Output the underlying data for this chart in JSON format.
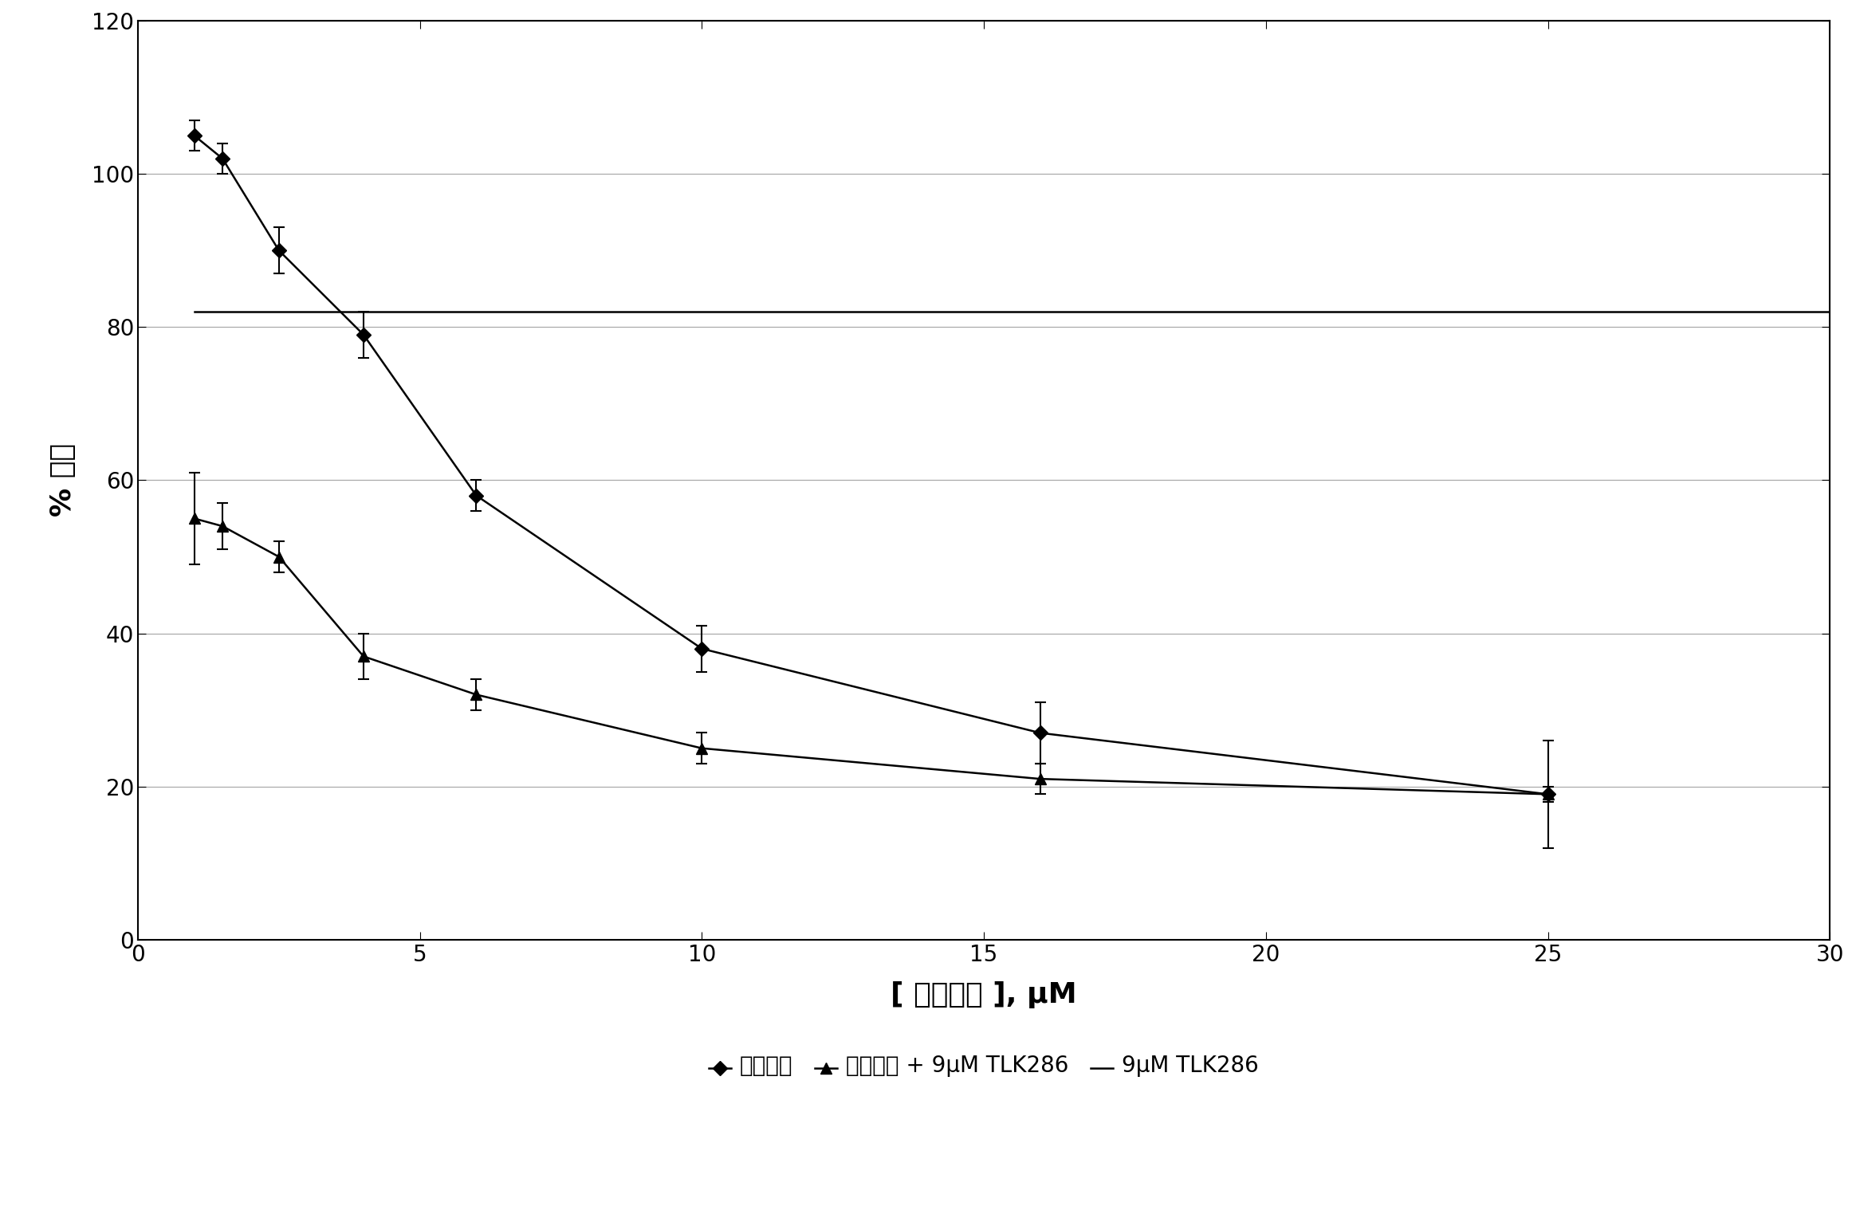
{
  "title": "",
  "xlabel": "[ 奥沙利铂 ], μM",
  "ylabel": "% 生长",
  "xlim": [
    0,
    30
  ],
  "ylim": [
    0,
    120
  ],
  "yticks": [
    0,
    20,
    40,
    60,
    80,
    100,
    120
  ],
  "xticks": [
    0,
    5,
    10,
    15,
    20,
    25,
    30
  ],
  "series1_label": "奥沙利铂",
  "series1_x": [
    1,
    1.5,
    2.5,
    4,
    6,
    10,
    16,
    25
  ],
  "series1_y": [
    105,
    102,
    90,
    79,
    58,
    38,
    27,
    19
  ],
  "series1_yerr": [
    2,
    2,
    3,
    3,
    2,
    3,
    4,
    7
  ],
  "series2_label": "奥沙利铂 + 9μM TLK286",
  "series2_x": [
    1,
    1.5,
    2.5,
    4,
    6,
    10,
    16,
    25
  ],
  "series2_y": [
    55,
    54,
    50,
    37,
    32,
    25,
    21,
    19
  ],
  "series2_yerr": [
    6,
    3,
    2,
    3,
    2,
    2,
    2,
    1
  ],
  "series3_label": "9μM TLK286",
  "series3_x": [
    1,
    30
  ],
  "series3_y": [
    82,
    82
  ],
  "line_color": "#000000",
  "background_color": "#ffffff",
  "grid_color": "#aaaaaa",
  "capsize": 5
}
